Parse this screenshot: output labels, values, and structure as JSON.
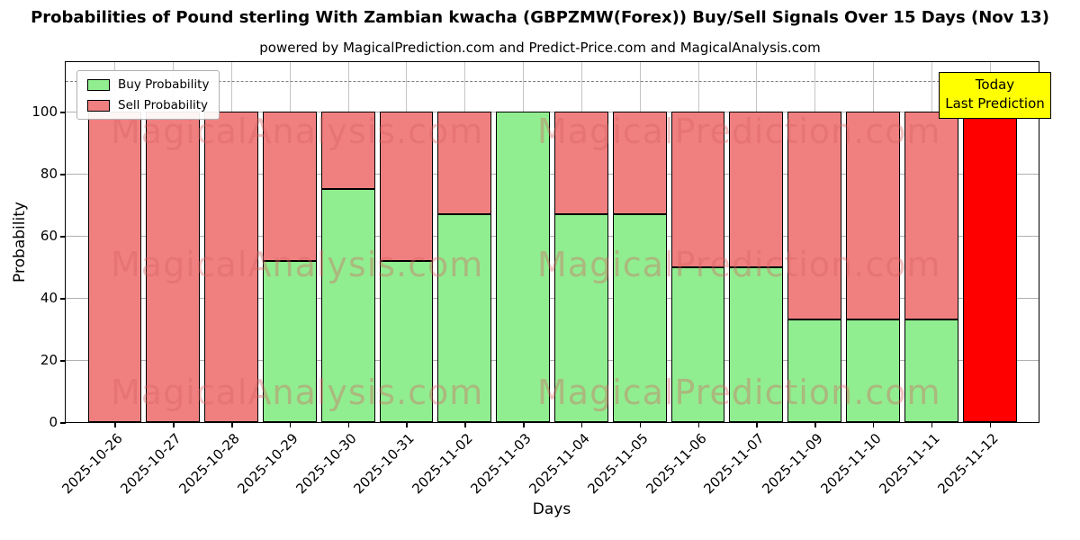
{
  "title": "Probabilities of Pound sterling With Zambian kwacha (GBPZMW(Forex)) Buy/Sell Signals Over 15 Days (Nov 13)",
  "subtitle": "powered by MagicalPrediction.com and Predict-Price.com and MagicalAnalysis.com",
  "legend": {
    "buy_label": "Buy Probability",
    "sell_label": "Sell Probability"
  },
  "today_box": {
    "line1": "Today",
    "line2": "Last Prediction"
  },
  "watermarks": {
    "left": "MagicalAnalysis.com",
    "right": "MagicalPrediction.com"
  },
  "colors": {
    "buy": "#90EE90",
    "sell": "#F08080",
    "today": "#FF0000",
    "today_box_bg": "#FFFF00",
    "grid": "#B0B0B0"
  },
  "chart_data": {
    "type": "bar",
    "stacked": true,
    "title": "Probabilities of Pound sterling With Zambian kwacha (GBPZMW(Forex)) Buy/Sell Signals Over 15 Days (Nov 13)",
    "xlabel": "Days",
    "ylabel": "Probability",
    "ylim": [
      0,
      116
    ],
    "yticks": [
      0,
      20,
      40,
      60,
      80,
      100
    ],
    "dashed_line_y": 110,
    "grid": true,
    "legend_position": "upper left",
    "categories": [
      "2025-10-26",
      "2025-10-27",
      "2025-10-28",
      "2025-10-29",
      "2025-10-30",
      "2025-10-31",
      "2025-11-02",
      "2025-11-03",
      "2025-11-04",
      "2025-11-05",
      "2025-11-06",
      "2025-11-07",
      "2025-11-09",
      "2025-11-10",
      "2025-11-11",
      "2025-11-12"
    ],
    "series": [
      {
        "name": "Buy Probability",
        "slug": "buy",
        "color": "#90EE90",
        "values": [
          0,
          0,
          0,
          52,
          75,
          52,
          67,
          100,
          67,
          67,
          50,
          50,
          33,
          33,
          33,
          0
        ]
      },
      {
        "name": "Sell Probability",
        "slug": "sell",
        "color": "#F08080",
        "values": [
          100,
          100,
          100,
          48,
          25,
          48,
          33,
          0,
          33,
          33,
          50,
          50,
          67,
          67,
          67,
          0
        ]
      },
      {
        "name": "Today Last Prediction",
        "slug": "today",
        "color": "#FF0000",
        "values": [
          0,
          0,
          0,
          0,
          0,
          0,
          0,
          0,
          0,
          0,
          0,
          0,
          0,
          0,
          0,
          100
        ]
      }
    ]
  }
}
